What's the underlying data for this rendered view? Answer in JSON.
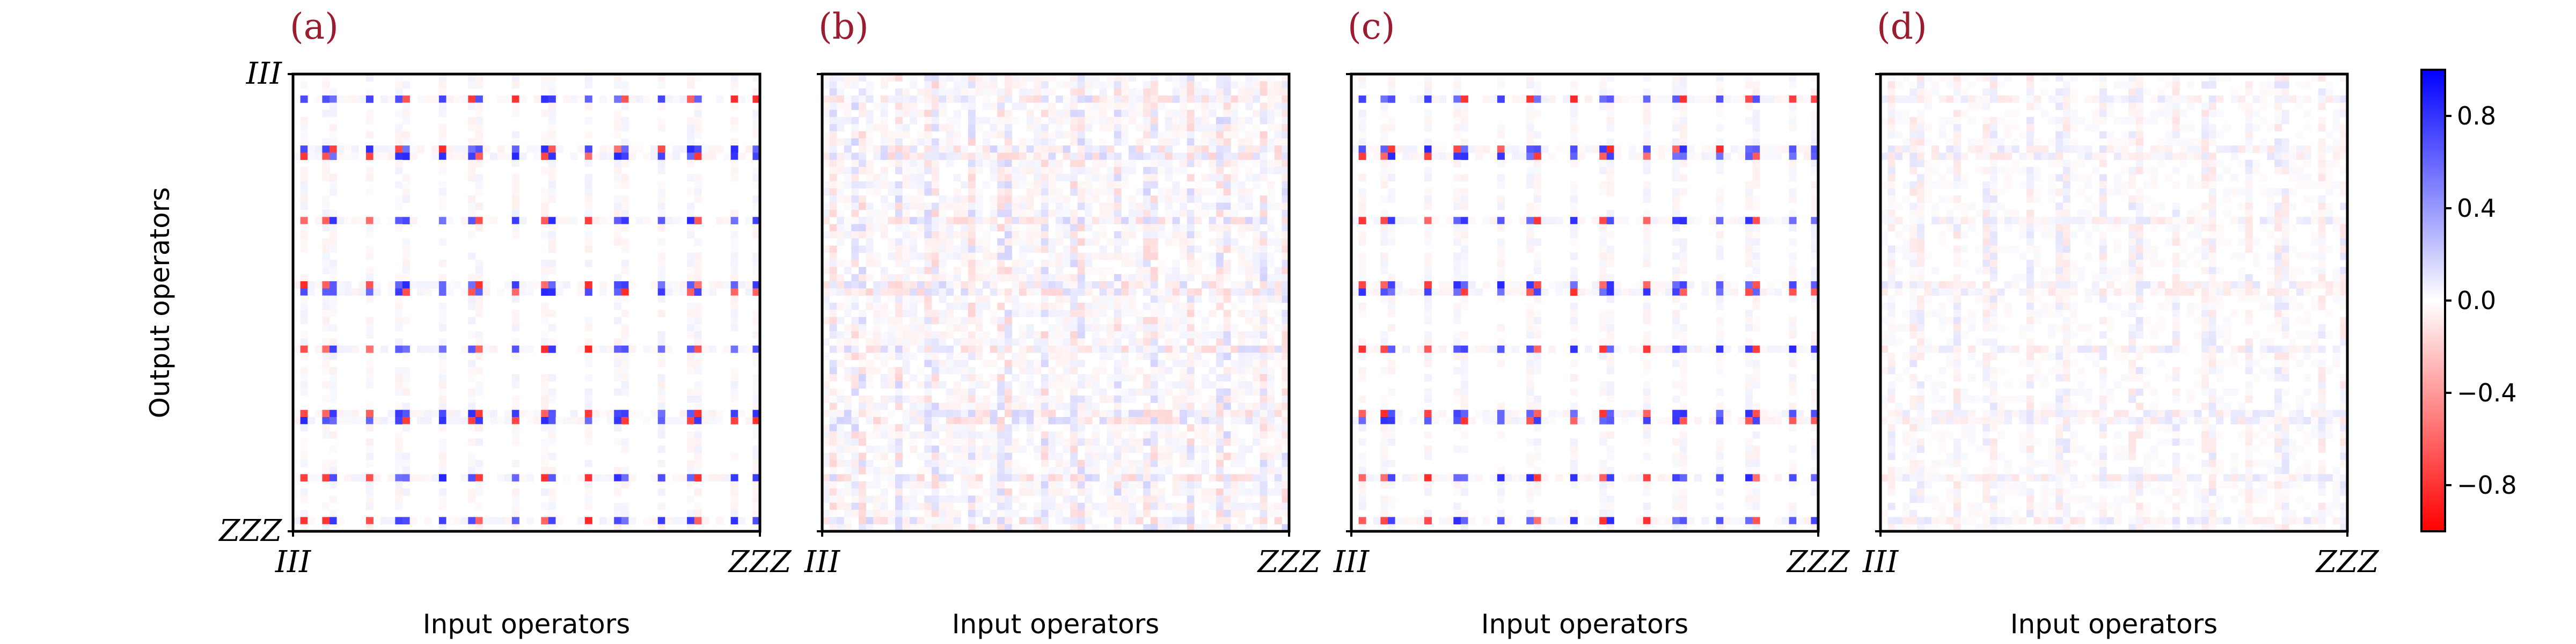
{
  "chart_data": {
    "type": "heatmap",
    "colormap": {
      "low": "#ff0000",
      "mid": "#ffffff",
      "high": "#0000ff",
      "vmin": -1.0,
      "vmax": 1.0
    },
    "panels": [
      {
        "label": "(a)",
        "xlabel": "Input operators",
        "ylabel": "Output operators",
        "x_tick_labels": [
          "III",
          "ZZZ"
        ],
        "y_tick_labels": [
          "III",
          "ZZZ"
        ],
        "style": "ideal"
      },
      {
        "label": "(b)",
        "xlabel": "Input operators",
        "ylabel": "",
        "x_tick_labels": [
          "III",
          "ZZZ"
        ],
        "y_tick_labels": [],
        "style": "residual"
      },
      {
        "label": "(c)",
        "xlabel": "Input operators",
        "ylabel": "",
        "x_tick_labels": [
          "III",
          "ZZZ"
        ],
        "y_tick_labels": [],
        "style": "ideal"
      },
      {
        "label": "(d)",
        "xlabel": "Input operators",
        "ylabel": "",
        "x_tick_labels": [
          "III",
          "ZZZ"
        ],
        "y_tick_labels": [],
        "style": "faint"
      }
    ],
    "colorbar": {
      "ticks": [
        0.8,
        0.4,
        0.0,
        -0.4,
        -0.8
      ],
      "tick_labels": [
        "0.8",
        "0.4",
        "0.0",
        "−0.4",
        "−0.8"
      ],
      "range": [
        -1.0,
        1.0
      ]
    }
  }
}
